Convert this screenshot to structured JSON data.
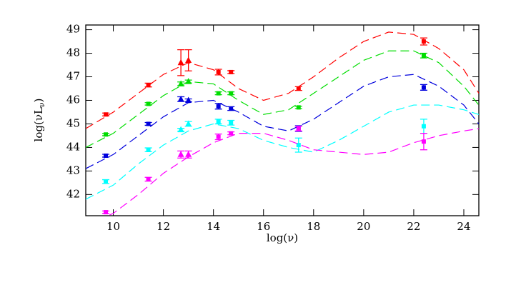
{
  "chart_data": {
    "type": "scatter",
    "x_label": "log(ν)",
    "y_label": [
      "log(νL",
      "ν",
      ")"
    ],
    "xlim": [
      8.9,
      24.6
    ],
    "ylim": [
      41.1,
      49.2
    ],
    "xticks": [
      10,
      12,
      14,
      16,
      18,
      20,
      22,
      24
    ],
    "yticks": [
      42,
      43,
      44,
      45,
      46,
      47,
      48,
      49
    ],
    "x": [
      9.7,
      11.4,
      12.7,
      13.0,
      14.2,
      14.7,
      17.4,
      22.4
    ],
    "triangle_points": [
      2,
      3
    ],
    "curve_x": [
      8.9,
      10,
      11,
      12,
      13,
      14,
      15,
      16,
      17,
      18,
      19,
      20,
      21,
      22,
      23,
      24,
      24.6
    ],
    "series": [
      {
        "color": "#ff0000",
        "values": [
          45.4,
          46.65,
          47.6,
          47.7,
          47.2,
          47.2,
          46.5,
          48.5
        ],
        "errors": [
          0.06,
          0.08,
          0.55,
          0.45,
          0.12,
          0.06,
          0.08,
          0.15
        ],
        "curve": [
          44.8,
          45.5,
          46.3,
          47.1,
          47.6,
          47.3,
          46.5,
          46.0,
          46.3,
          47.0,
          47.8,
          48.5,
          48.9,
          48.8,
          48.2,
          47.3,
          46.3
        ]
      },
      {
        "color": "#00dd00",
        "values": [
          44.55,
          45.85,
          46.7,
          46.8,
          46.3,
          46.3,
          45.7,
          47.9
        ],
        "errors": [
          0.05,
          0.05,
          0.08,
          0.06,
          0.06,
          0.06,
          0.05,
          0.1
        ],
        "curve": [
          44.0,
          44.6,
          45.4,
          46.2,
          46.8,
          46.7,
          46.0,
          45.4,
          45.6,
          46.3,
          47.0,
          47.7,
          48.1,
          48.1,
          47.6,
          46.6,
          45.8
        ]
      },
      {
        "color": "#0000dd",
        "values": [
          43.65,
          45.0,
          46.05,
          46.0,
          45.75,
          45.65,
          44.8,
          46.55
        ],
        "errors": [
          0.06,
          0.06,
          0.1,
          0.06,
          0.12,
          0.08,
          0.12,
          0.12
        ],
        "curve": [
          43.1,
          43.7,
          44.5,
          45.3,
          45.9,
          46.0,
          45.5,
          44.9,
          44.7,
          45.2,
          45.9,
          46.6,
          47.0,
          47.1,
          46.6,
          45.8,
          45.0
        ]
      },
      {
        "color": "#00ffff",
        "values": [
          42.55,
          43.9,
          44.75,
          45.0,
          45.1,
          45.05,
          44.1,
          44.9
        ],
        "errors": [
          0.08,
          0.08,
          0.06,
          0.1,
          0.1,
          0.1,
          0.3,
          0.3
        ],
        "curve": [
          41.8,
          42.4,
          43.3,
          44.1,
          44.7,
          45.0,
          44.8,
          44.3,
          44.0,
          43.8,
          44.3,
          44.9,
          45.5,
          45.8,
          45.8,
          45.6,
          45.4
        ]
      },
      {
        "color": "#ff00ff",
        "values": [
          41.25,
          42.65,
          43.7,
          43.7,
          44.45,
          44.6,
          44.8,
          44.25
        ],
        "errors": [
          0.05,
          0.08,
          0.15,
          0.15,
          0.12,
          0.06,
          0.1,
          0.35
        ],
        "curve": [
          40.7,
          41.2,
          42.0,
          42.9,
          43.6,
          44.2,
          44.6,
          44.6,
          44.3,
          43.9,
          43.8,
          43.7,
          43.8,
          44.2,
          44.5,
          44.7,
          44.8
        ]
      }
    ]
  }
}
